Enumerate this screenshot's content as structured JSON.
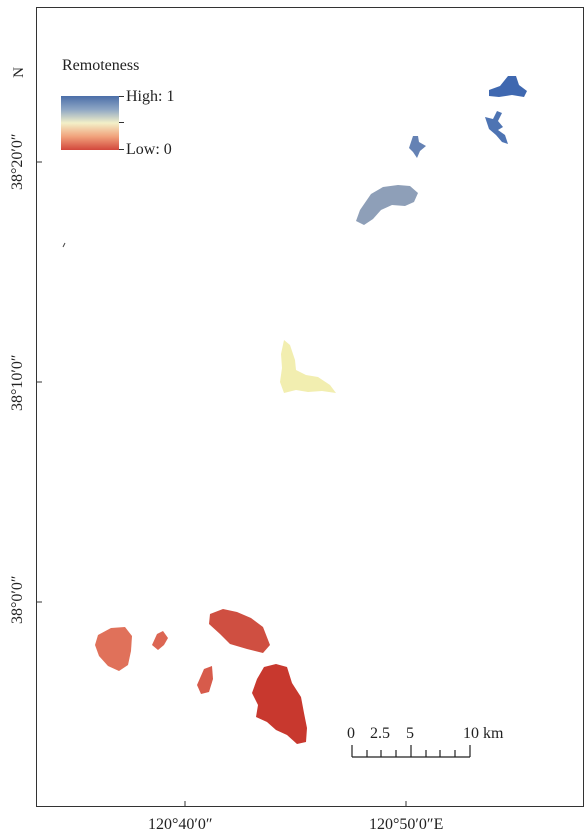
{
  "map": {
    "north_label": "N",
    "legend": {
      "title": "Remoteness",
      "high_label": "High: 1",
      "low_label": "Low: 0",
      "colors": [
        "#4a6ea8",
        "#8ea6c4",
        "#f3f0c8",
        "#f1a27c",
        "#d2473c"
      ]
    },
    "latitude_labels": [
      "38°20′0″",
      "38°10′0″",
      "38°0′0″"
    ],
    "longitude_labels": [
      "120°40′0″",
      "120°50′0″E"
    ],
    "scale_bar": {
      "labels": [
        "0",
        "2.5",
        "5",
        "10 km"
      ]
    },
    "islands": [
      {
        "name": "northeast-island",
        "color": "#3f68b0"
      },
      {
        "name": "east-island",
        "color": "#4e74b3"
      },
      {
        "name": "small-northern-island",
        "color": "#6582b4"
      },
      {
        "name": "middle-north-island",
        "color": "#8e9fb8"
      },
      {
        "name": "central-island",
        "color": "#f2eeb0"
      },
      {
        "name": "southwest-island",
        "color": "#e0715a"
      },
      {
        "name": "south-small-island",
        "color": "#dc6653"
      },
      {
        "name": "south-central-island",
        "color": "#cf4f41"
      },
      {
        "name": "tiny-island",
        "color": "#d75b4b"
      },
      {
        "name": "south-main-island",
        "color": "#c8382e"
      }
    ]
  }
}
